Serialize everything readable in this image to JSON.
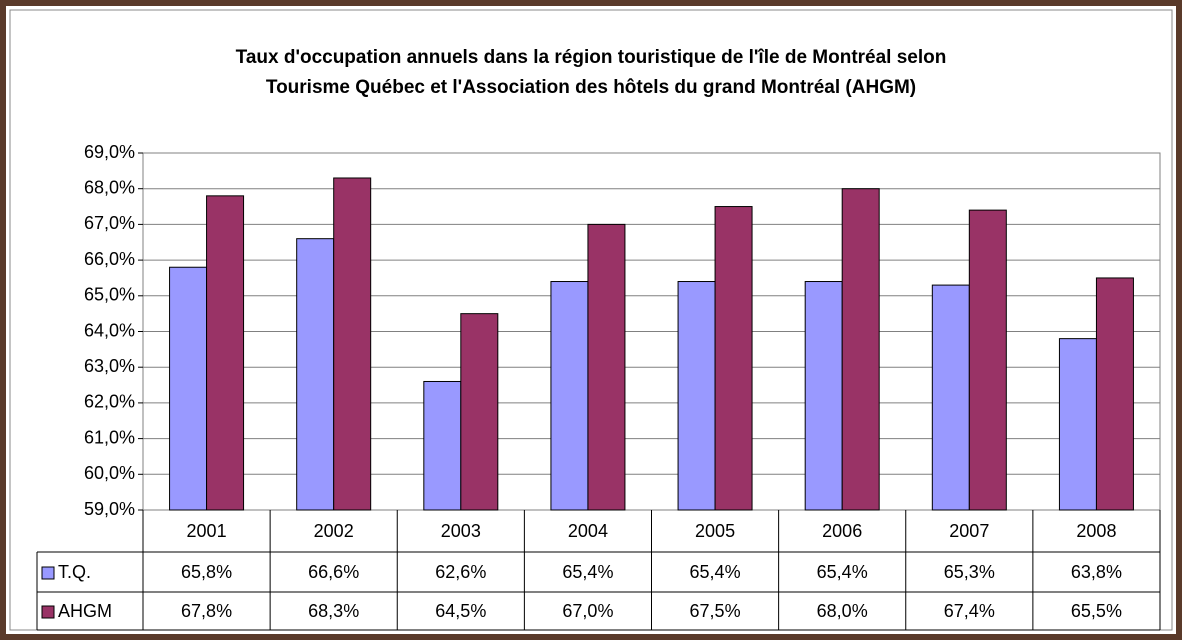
{
  "chart_data": {
    "type": "bar",
    "title": [
      "Taux d'occupation annuels dans la région touristique de l'île de Montréal selon",
      "Tourisme Québec et l'Association des hôtels du grand Montréal (AHGM)"
    ],
    "categories": [
      "2001",
      "2002",
      "2003",
      "2004",
      "2005",
      "2006",
      "2007",
      "2008"
    ],
    "series": [
      {
        "name": "T.Q.",
        "color": "#9999ff",
        "values": [
          65.8,
          66.6,
          62.6,
          65.4,
          65.4,
          65.4,
          65.3,
          63.8
        ],
        "value_labels": [
          "65,8%",
          "66,6%",
          "62,6%",
          "65,4%",
          "65,4%",
          "65,4%",
          "65,3%",
          "63,8%"
        ]
      },
      {
        "name": "AHGM",
        "color": "#993366",
        "values": [
          67.8,
          68.3,
          64.5,
          67.0,
          67.5,
          68.0,
          67.4,
          65.5
        ],
        "value_labels": [
          "67,8%",
          "68,3%",
          "64,5%",
          "67,0%",
          "67,5%",
          "68,0%",
          "67,4%",
          "65,5%"
        ]
      }
    ],
    "ylim": [
      59,
      69
    ],
    "yticks": [
      {
        "value": 59,
        "label": "59,0%"
      },
      {
        "value": 60,
        "label": "60,0%"
      },
      {
        "value": 61,
        "label": "61,0%"
      },
      {
        "value": 62,
        "label": "62,0%"
      },
      {
        "value": 63,
        "label": "63,0%"
      },
      {
        "value": 64,
        "label": "64,0%"
      },
      {
        "value": 65,
        "label": "65,0%"
      },
      {
        "value": 66,
        "label": "66,0%"
      },
      {
        "value": 67,
        "label": "67,0%"
      },
      {
        "value": 68,
        "label": "68,0%"
      },
      {
        "value": 69,
        "label": "69,0%"
      }
    ],
    "grid": true
  }
}
